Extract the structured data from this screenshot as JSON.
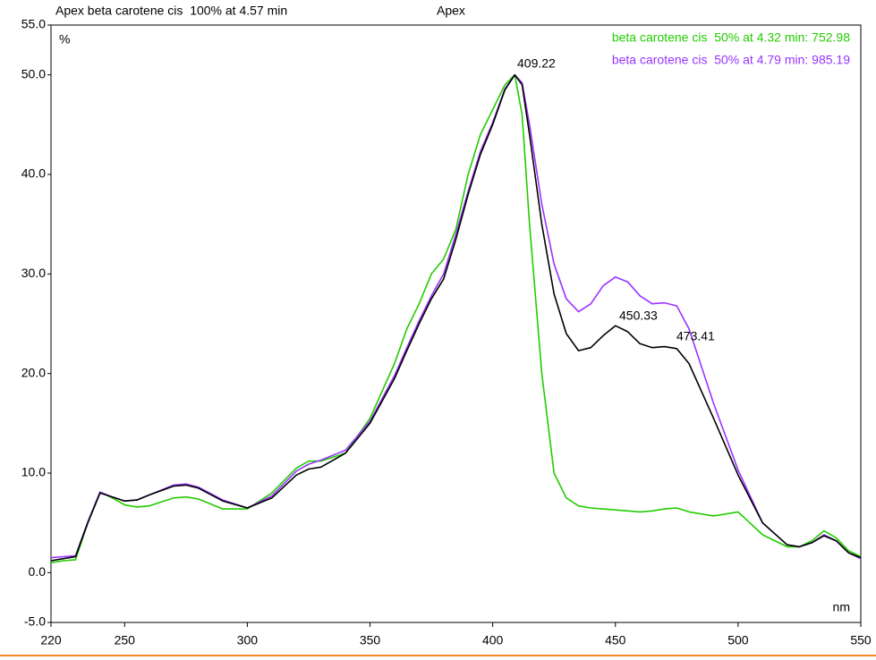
{
  "chart_data": {
    "type": "line",
    "header_right": "Apex",
    "y_unit_label": "%",
    "x_unit_label": "nm",
    "annotations": [
      "409.22",
      "450.33",
      "473.41"
    ],
    "xlim": [
      220,
      550
    ],
    "xticks": [
      220,
      250,
      300,
      350,
      400,
      450,
      500,
      550
    ],
    "ylim": [
      -5,
      55
    ],
    "yticks": [
      {
        "value": -5,
        "label": "-5.0"
      },
      {
        "value": 0,
        "label": "0.0"
      },
      {
        "value": 10,
        "label": "10.0"
      },
      {
        "value": 20,
        "label": "20.0"
      },
      {
        "value": 30,
        "label": "30.0"
      },
      {
        "value": 40,
        "label": "40.0"
      },
      {
        "value": 50,
        "label": "50.0"
      },
      {
        "value": 55,
        "label": "55.0"
      }
    ],
    "x": [
      220,
      225,
      230,
      235,
      240,
      245,
      250,
      255,
      260,
      270,
      275,
      280,
      290,
      300,
      310,
      320,
      325,
      330,
      340,
      350,
      360,
      365,
      370,
      375,
      380,
      385,
      390,
      395,
      400,
      405,
      409,
      412,
      415,
      420,
      425,
      430,
      435,
      440,
      445,
      450,
      455,
      460,
      465,
      470,
      475,
      480,
      490,
      500,
      510,
      520,
      525,
      530,
      535,
      540,
      545,
      550
    ],
    "series": [
      {
        "name": "Apex beta carotene cis  100% at 4.57 min",
        "color": "#000000",
        "values": [
          1.2,
          1.4,
          1.6,
          5,
          8.0,
          7.6,
          7.2,
          7.3,
          7.8,
          8.7,
          8.8,
          8.5,
          7.2,
          6.5,
          7.5,
          9.8,
          10.4,
          10.6,
          12,
          15,
          19.5,
          22.3,
          25,
          27.5,
          29.5,
          33.5,
          38,
          42,
          45,
          48.5,
          50,
          49,
          44,
          35,
          28,
          24,
          22.3,
          22.6,
          23.8,
          24.8,
          24.2,
          23,
          22.6,
          22.7,
          22.5,
          21,
          15.5,
          9.8,
          5,
          2.8,
          2.6,
          3,
          3.7,
          3.2,
          2,
          1.5
        ]
      },
      {
        "name": "beta carotene cis  50% at 4.32 min: 752.98",
        "color": "#22cc00",
        "values": [
          1.0,
          1.2,
          1.3,
          5,
          8.1,
          7.5,
          6.8,
          6.6,
          6.7,
          7.5,
          7.6,
          7.4,
          6.4,
          6.4,
          8,
          10.5,
          11.2,
          11.2,
          12,
          15.5,
          21,
          24.5,
          27,
          30,
          31.5,
          34.5,
          40,
          44,
          46.5,
          49,
          50,
          46,
          35,
          20,
          10,
          7.5,
          6.7,
          6.5,
          6.4,
          6.3,
          6.2,
          6.1,
          6.2,
          6.4,
          6.5,
          6.1,
          5.7,
          6.1,
          3.8,
          2.6,
          2.6,
          3.2,
          4.2,
          3.5,
          2.2,
          1.6
        ]
      },
      {
        "name": "beta carotene cis  50% at 4.79 min: 985.19",
        "color": "#9933ff",
        "values": [
          1.5,
          1.6,
          1.7,
          5.1,
          8.1,
          7.6,
          7.2,
          7.3,
          7.8,
          8.8,
          8.9,
          8.6,
          7.3,
          6.5,
          7.7,
          10.2,
          10.9,
          11.3,
          12.3,
          15.2,
          19.8,
          22.6,
          25.3,
          27.8,
          30,
          34,
          38.3,
          42.3,
          45.2,
          48.6,
          50,
          49.2,
          45,
          37,
          31,
          27.5,
          26.2,
          27,
          28.8,
          29.7,
          29.2,
          27.8,
          27,
          27.1,
          26.8,
          24.5,
          17,
          10.3,
          5,
          2.8,
          2.6,
          3.0,
          3.8,
          3.2,
          2,
          1.4
        ]
      }
    ]
  }
}
